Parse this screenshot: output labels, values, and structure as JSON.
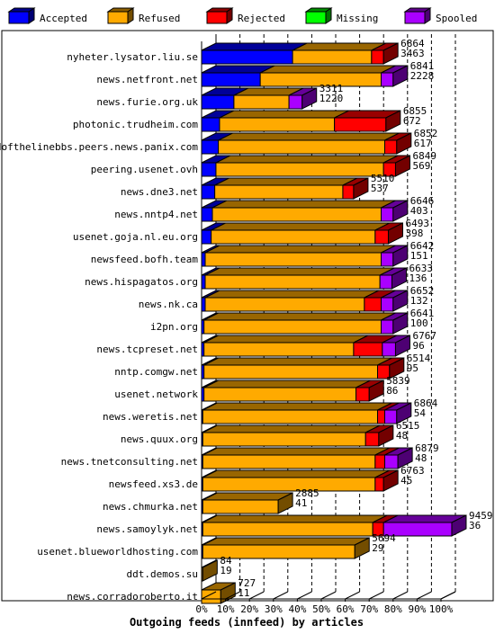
{
  "chart_data": {
    "type": "bar",
    "title": "",
    "xlabel": "Outgoing feeds (innfeed) by articles",
    "ylabel": "",
    "xlim": [
      0,
      100
    ],
    "x_ticks": [
      "0%",
      "10%",
      "20%",
      "30%",
      "40%",
      "50%",
      "60%",
      "70%",
      "80%",
      "90%",
      "100%"
    ],
    "grid": true,
    "legend_position": "top",
    "legend": [
      {
        "name": "Accepted",
        "color": "#0000ff"
      },
      {
        "name": "Refused",
        "color": "#ffaa00"
      },
      {
        "name": "Rejected",
        "color": "#ff0000"
      },
      {
        "name": "Missing",
        "color": "#00ff00"
      },
      {
        "name": "Spooled",
        "color": "#aa00ff"
      }
    ],
    "rows": [
      {
        "host": "nyheter.lysator.liu.se",
        "total": 6864,
        "accepted": 3463,
        "segments": {
          "accepted": 38.0,
          "refused": 33.0,
          "rejected": 5.0,
          "missing": 0,
          "spooled": 0
        }
      },
      {
        "host": "news.netfront.net",
        "total": 6841,
        "accepted": 2228,
        "segments": {
          "accepted": 24.5,
          "refused": 50.5,
          "rejected": 0,
          "missing": 0,
          "spooled": 5.0
        }
      },
      {
        "host": "news.furie.org.uk",
        "total": 3311,
        "accepted": 1220,
        "segments": {
          "accepted": 13.5,
          "refused": 23.0,
          "rejected": 0,
          "missing": 0,
          "spooled": 5.5
        }
      },
      {
        "host": "photonic.trudheim.com",
        "total": 6855,
        "accepted": 672,
        "segments": {
          "accepted": 7.5,
          "refused": 48.0,
          "rejected": 21.5,
          "missing": 0,
          "spooled": 0
        }
      },
      {
        "host": "endofthelinebbs.peers.news.panix.com",
        "total": 6852,
        "accepted": 617,
        "segments": {
          "accepted": 7.0,
          "refused": 69.5,
          "rejected": 5.0,
          "missing": 0,
          "spooled": 0
        }
      },
      {
        "host": "peering.usenet.ovh",
        "total": 6849,
        "accepted": 569,
        "segments": {
          "accepted": 6.0,
          "refused": 70.0,
          "rejected": 5.0,
          "missing": 0,
          "spooled": 0
        }
      },
      {
        "host": "news.dne3.net",
        "total": 5510,
        "accepted": 537,
        "segments": {
          "accepted": 5.5,
          "refused": 53.5,
          "rejected": 4.5,
          "missing": 0,
          "spooled": 0
        }
      },
      {
        "host": "news.nntp4.net",
        "total": 6646,
        "accepted": 403,
        "segments": {
          "accepted": 4.5,
          "refused": 70.5,
          "rejected": 0,
          "missing": 0,
          "spooled": 5.0
        }
      },
      {
        "host": "usenet.goja.nl.eu.org",
        "total": 6493,
        "accepted": 398,
        "segments": {
          "accepted": 4.0,
          "refused": 68.5,
          "rejected": 5.5,
          "missing": 0,
          "spooled": 0
        }
      },
      {
        "host": "newsfeed.bofh.team",
        "total": 6642,
        "accepted": 151,
        "segments": {
          "accepted": 1.5,
          "refused": 73.5,
          "rejected": 0,
          "missing": 0,
          "spooled": 5.0
        }
      },
      {
        "host": "news.hispagatos.org",
        "total": 6633,
        "accepted": 136,
        "segments": {
          "accepted": 1.5,
          "refused": 73.0,
          "rejected": 0,
          "missing": 0,
          "spooled": 5.0
        }
      },
      {
        "host": "news.nk.ca",
        "total": 6652,
        "accepted": 132,
        "segments": {
          "accepted": 1.5,
          "refused": 66.5,
          "rejected": 7.0,
          "missing": 0,
          "spooled": 5.0
        }
      },
      {
        "host": "i2pn.org",
        "total": 6641,
        "accepted": 100,
        "segments": {
          "accepted": 1.0,
          "refused": 74.0,
          "rejected": 0,
          "missing": 0,
          "spooled": 5.0
        }
      },
      {
        "host": "news.tcpreset.net",
        "total": 6767,
        "accepted": 96,
        "segments": {
          "accepted": 1.0,
          "refused": 62.5,
          "rejected": 12.0,
          "missing": 0,
          "spooled": 5.5
        }
      },
      {
        "host": "nntp.comgw.net",
        "total": 6514,
        "accepted": 95,
        "segments": {
          "accepted": 1.0,
          "refused": 72.5,
          "rejected": 5.0,
          "missing": 0,
          "spooled": 0
        }
      },
      {
        "host": "usenet.network",
        "total": 5839,
        "accepted": 86,
        "segments": {
          "accepted": 1.0,
          "refused": 63.5,
          "rejected": 5.5,
          "missing": 0,
          "spooled": 0
        }
      },
      {
        "host": "news.weretis.net",
        "total": 6864,
        "accepted": 54,
        "segments": {
          "accepted": 0.5,
          "refused": 73.0,
          "rejected": 3.0,
          "missing": 0,
          "spooled": 5.0
        }
      },
      {
        "host": "news.quux.org",
        "total": 6515,
        "accepted": 48,
        "segments": {
          "accepted": 0.5,
          "refused": 68.0,
          "rejected": 5.5,
          "missing": 0,
          "spooled": 0
        }
      },
      {
        "host": "news.tnetconsulting.net",
        "total": 6879,
        "accepted": 48,
        "segments": {
          "accepted": 0.5,
          "refused": 72.0,
          "rejected": 4.0,
          "missing": 0,
          "spooled": 5.5
        }
      },
      {
        "host": "newsfeed.xs3.de",
        "total": 6763,
        "accepted": 45,
        "segments": {
          "accepted": 0.5,
          "refused": 72.0,
          "rejected": 3.5,
          "missing": 0,
          "spooled": 0
        }
      },
      {
        "host": "news.chmurka.net",
        "total": 2885,
        "accepted": 41,
        "segments": {
          "accepted": 0.5,
          "refused": 31.5,
          "rejected": 0,
          "missing": 0,
          "spooled": 0
        }
      },
      {
        "host": "news.samoylyk.net",
        "total": 9459,
        "accepted": 36,
        "segments": {
          "accepted": 0.5,
          "refused": 71.0,
          "rejected": 4.5,
          "missing": 0,
          "spooled": 28.5
        }
      },
      {
        "host": "usenet.blueworldhosting.com",
        "total": 5694,
        "accepted": 29,
        "segments": {
          "accepted": 0.5,
          "refused": 63.5,
          "rejected": 0,
          "missing": 0,
          "spooled": 0
        }
      },
      {
        "host": "ddt.demos.su",
        "total": 84,
        "accepted": 19,
        "segments": {
          "accepted": 0,
          "refused": 0.5,
          "rejected": 0,
          "missing": 0,
          "spooled": 0
        }
      },
      {
        "host": "news.corradoroberto.it",
        "total": 727,
        "accepted": 11,
        "segments": {
          "accepted": 0,
          "refused": 8.0,
          "rejected": 0,
          "missing": 0,
          "spooled": 0
        }
      }
    ]
  }
}
